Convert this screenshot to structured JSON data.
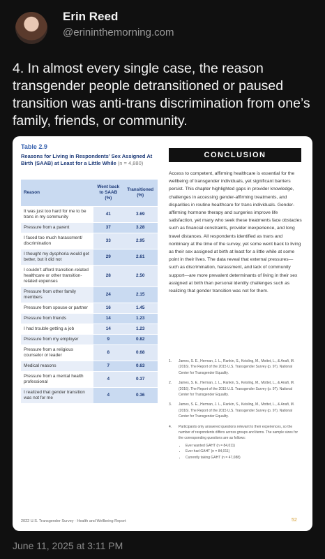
{
  "post": {
    "author_name": "Erin Reed",
    "handle": "@erininthemorning.com",
    "text": "4. In almost every single case, the reason transgender people detransitioned or paused transition was anti-trans discrimination from one’s family, friends, or community.",
    "timestamp": "June 11, 2025 at 3:11 PM"
  },
  "image": {
    "table": {
      "label": "Table 2.9",
      "caption": "Reasons for Living in Respondents’ Sex Assigned At Birth (SAAB) at Least for a Little While",
      "sample": "(n = 4,880)",
      "headers": [
        "Reason",
        "Went back to SAAB (%)",
        "Transitioned (%)"
      ],
      "rows": [
        [
          "It was just too hard for me to be trans in my community",
          "41",
          "3.69"
        ],
        [
          "Pressure from a parent",
          "37",
          "3.28"
        ],
        [
          "I faced too much harassment/ discrimination",
          "33",
          "2.95"
        ],
        [
          "I thought my dysphoria would get better, but it did not",
          "29",
          "2.61"
        ],
        [
          "I couldn’t afford transition-related healthcare or other transition-related expenses",
          "28",
          "2.50"
        ],
        [
          "Pressure from other family members",
          "24",
          "2.15"
        ],
        [
          "Pressure from spouse or partner",
          "16",
          "1.45"
        ],
        [
          "Pressure from friends",
          "14",
          "1.23"
        ],
        [
          "I had trouble getting a job",
          "14",
          "1.23"
        ],
        [
          "Pressure from my employer",
          "9",
          "0.82"
        ],
        [
          "Pressure from a religious counselor or leader",
          "8",
          "0.68"
        ],
        [
          "Medical reasons",
          "7",
          "0.63"
        ],
        [
          "Pressure from a mental health professional",
          "4",
          "0.37"
        ],
        [
          "I realized that gender transition was not for me",
          "4",
          "0.36"
        ]
      ]
    },
    "footer": "2022 U.S. Transgender Survey · Health and Wellbeing Report",
    "page_number": "52",
    "conclusion": {
      "title": "CONCLUSION",
      "text": "Access to competent, affirming healthcare is essential for the wellbeing of transgender individuals, yet significant barriers persist. This chapter highlighted gaps in provider knowledge, challenges in accessing gender-affirming treatments, and disparities in routine healthcare for trans individuals. Gender-affirming hormone therapy and surgeries improve life satisfaction, yet many who seek these treatments face obstacles such as financial constraints, provider inexperience, and long travel distances. All respondents identified as trans and nonbinary at the time of the survey, yet some went back to living as their sex assigned at birth at least for a little while at some point in their lives. The data reveal that external pressures—such as discrimination, harassment, and lack of community support—are more prevalent determinants of living in their sex assigned at birth than personal identity challenges such as realizing that gender transition was not for them.",
      "footnotes": [
        {
          "number": "1.",
          "text": "James, S. E., Herman, J. L., Rankin, S., Keisling, M., Mottet, L., & Anafi, M. (2016). The Report of the 2015 U.S. Transgender Survey (p. 97). National Center for Transgender Equality."
        },
        {
          "number": "2.",
          "text": "James, S. E., Herman, J. L., Rankin, S., Keisling, M., Mottet, L., & Anafi, M. (2016). The Report of the 2015 U.S. Transgender Survey (p. 97). National Center for Transgender Equality."
        },
        {
          "number": "3.",
          "text": "James, S. E., Herman, J. L., Rankin, S., Keisling, M., Mottet, L., & Anafi, M. (2016). The Report of the 2015 U.S. Transgender Survey (p. 97). National Center for Transgender Equality."
        },
        {
          "number": "4.",
          "text": "Participants only answered questions relevant to their experiences, so the number of respondents differs across groups and items. The sample sizes for the corresponding questions are as follows:",
          "bullets": [
            "Ever wanted GAHT (n = 84,011)",
            "Ever had GAHT (n = 84,011)",
            "Currently taking GAHT (n = 47,088)"
          ]
        }
      ]
    }
  }
}
